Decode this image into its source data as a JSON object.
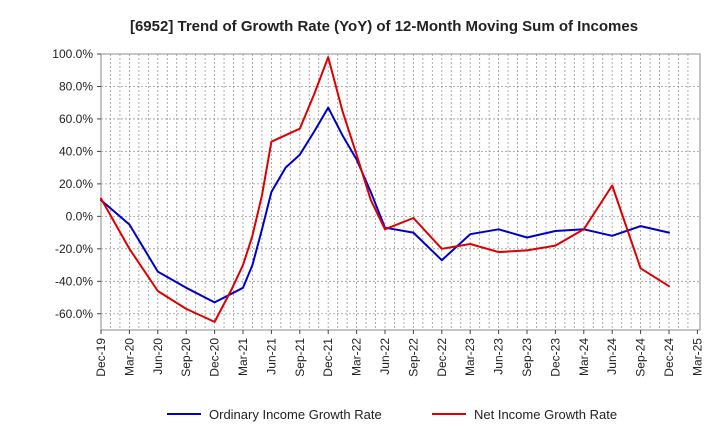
{
  "chart_data": {
    "type": "line",
    "title": "[6952]  Trend of Growth Rate (YoY) of 12-Month Moving Sum of Incomes",
    "xlabel": "",
    "ylabel": "",
    "ylim": [
      -70,
      100
    ],
    "yticks": [
      100,
      80,
      60,
      40,
      20,
      0,
      -20,
      -40,
      -60
    ],
    "ytick_labels": [
      "100.0%",
      "80.0%",
      "60.0%",
      "40.0%",
      "20.0%",
      "0.0%",
      "-20.0%",
      "-40.0%",
      "-60.0%"
    ],
    "x_tick_labels": [
      "Dec-19",
      "Mar-20",
      "Jun-20",
      "Sep-20",
      "Dec-20",
      "Mar-21",
      "Jun-21",
      "Sep-21",
      "Dec-21",
      "Mar-22",
      "Jun-22",
      "Sep-22",
      "Dec-22",
      "Mar-23",
      "Jun-23",
      "Sep-23",
      "Dec-23",
      "Mar-24",
      "Jun-24",
      "Sep-24",
      "Dec-24",
      "Mar-25"
    ],
    "grid": true,
    "legend_position": "bottom",
    "series": [
      {
        "name": "Ordinary Income Growth Rate",
        "color": "#0000cc",
        "x": [
          0,
          1,
          2,
          3,
          4,
          5,
          5.33,
          5.67,
          6,
          6.5,
          7,
          7.5,
          8,
          8.5,
          9,
          9.5,
          10,
          11,
          12,
          13,
          14,
          15,
          16,
          17,
          18,
          19,
          20
        ],
        "values": [
          10,
          -5,
          -34,
          -44,
          -53,
          -44,
          -30,
          -8,
          15,
          30,
          38,
          52,
          67,
          50,
          35,
          15,
          -7,
          -10,
          -27,
          -11,
          -8,
          -13,
          -9,
          -8,
          -12,
          -6,
          -10
        ]
      },
      {
        "name": "Net Income Growth Rate",
        "color": "#dd0000",
        "x": [
          0,
          1,
          2,
          3,
          4,
          4.6,
          5,
          5.33,
          5.67,
          6,
          7,
          7.5,
          8,
          8.5,
          9,
          9.5,
          10,
          11,
          12,
          13,
          14,
          15,
          16,
          17,
          18,
          19,
          20
        ],
        "values": [
          11,
          -20,
          -46,
          -57,
          -65,
          -45,
          -30,
          -12,
          13,
          46,
          54,
          75,
          98,
          65,
          38,
          10,
          -8,
          -1,
          -20,
          -17,
          -22,
          -21,
          -18,
          -8,
          19,
          -32,
          -43
        ]
      }
    ]
  }
}
